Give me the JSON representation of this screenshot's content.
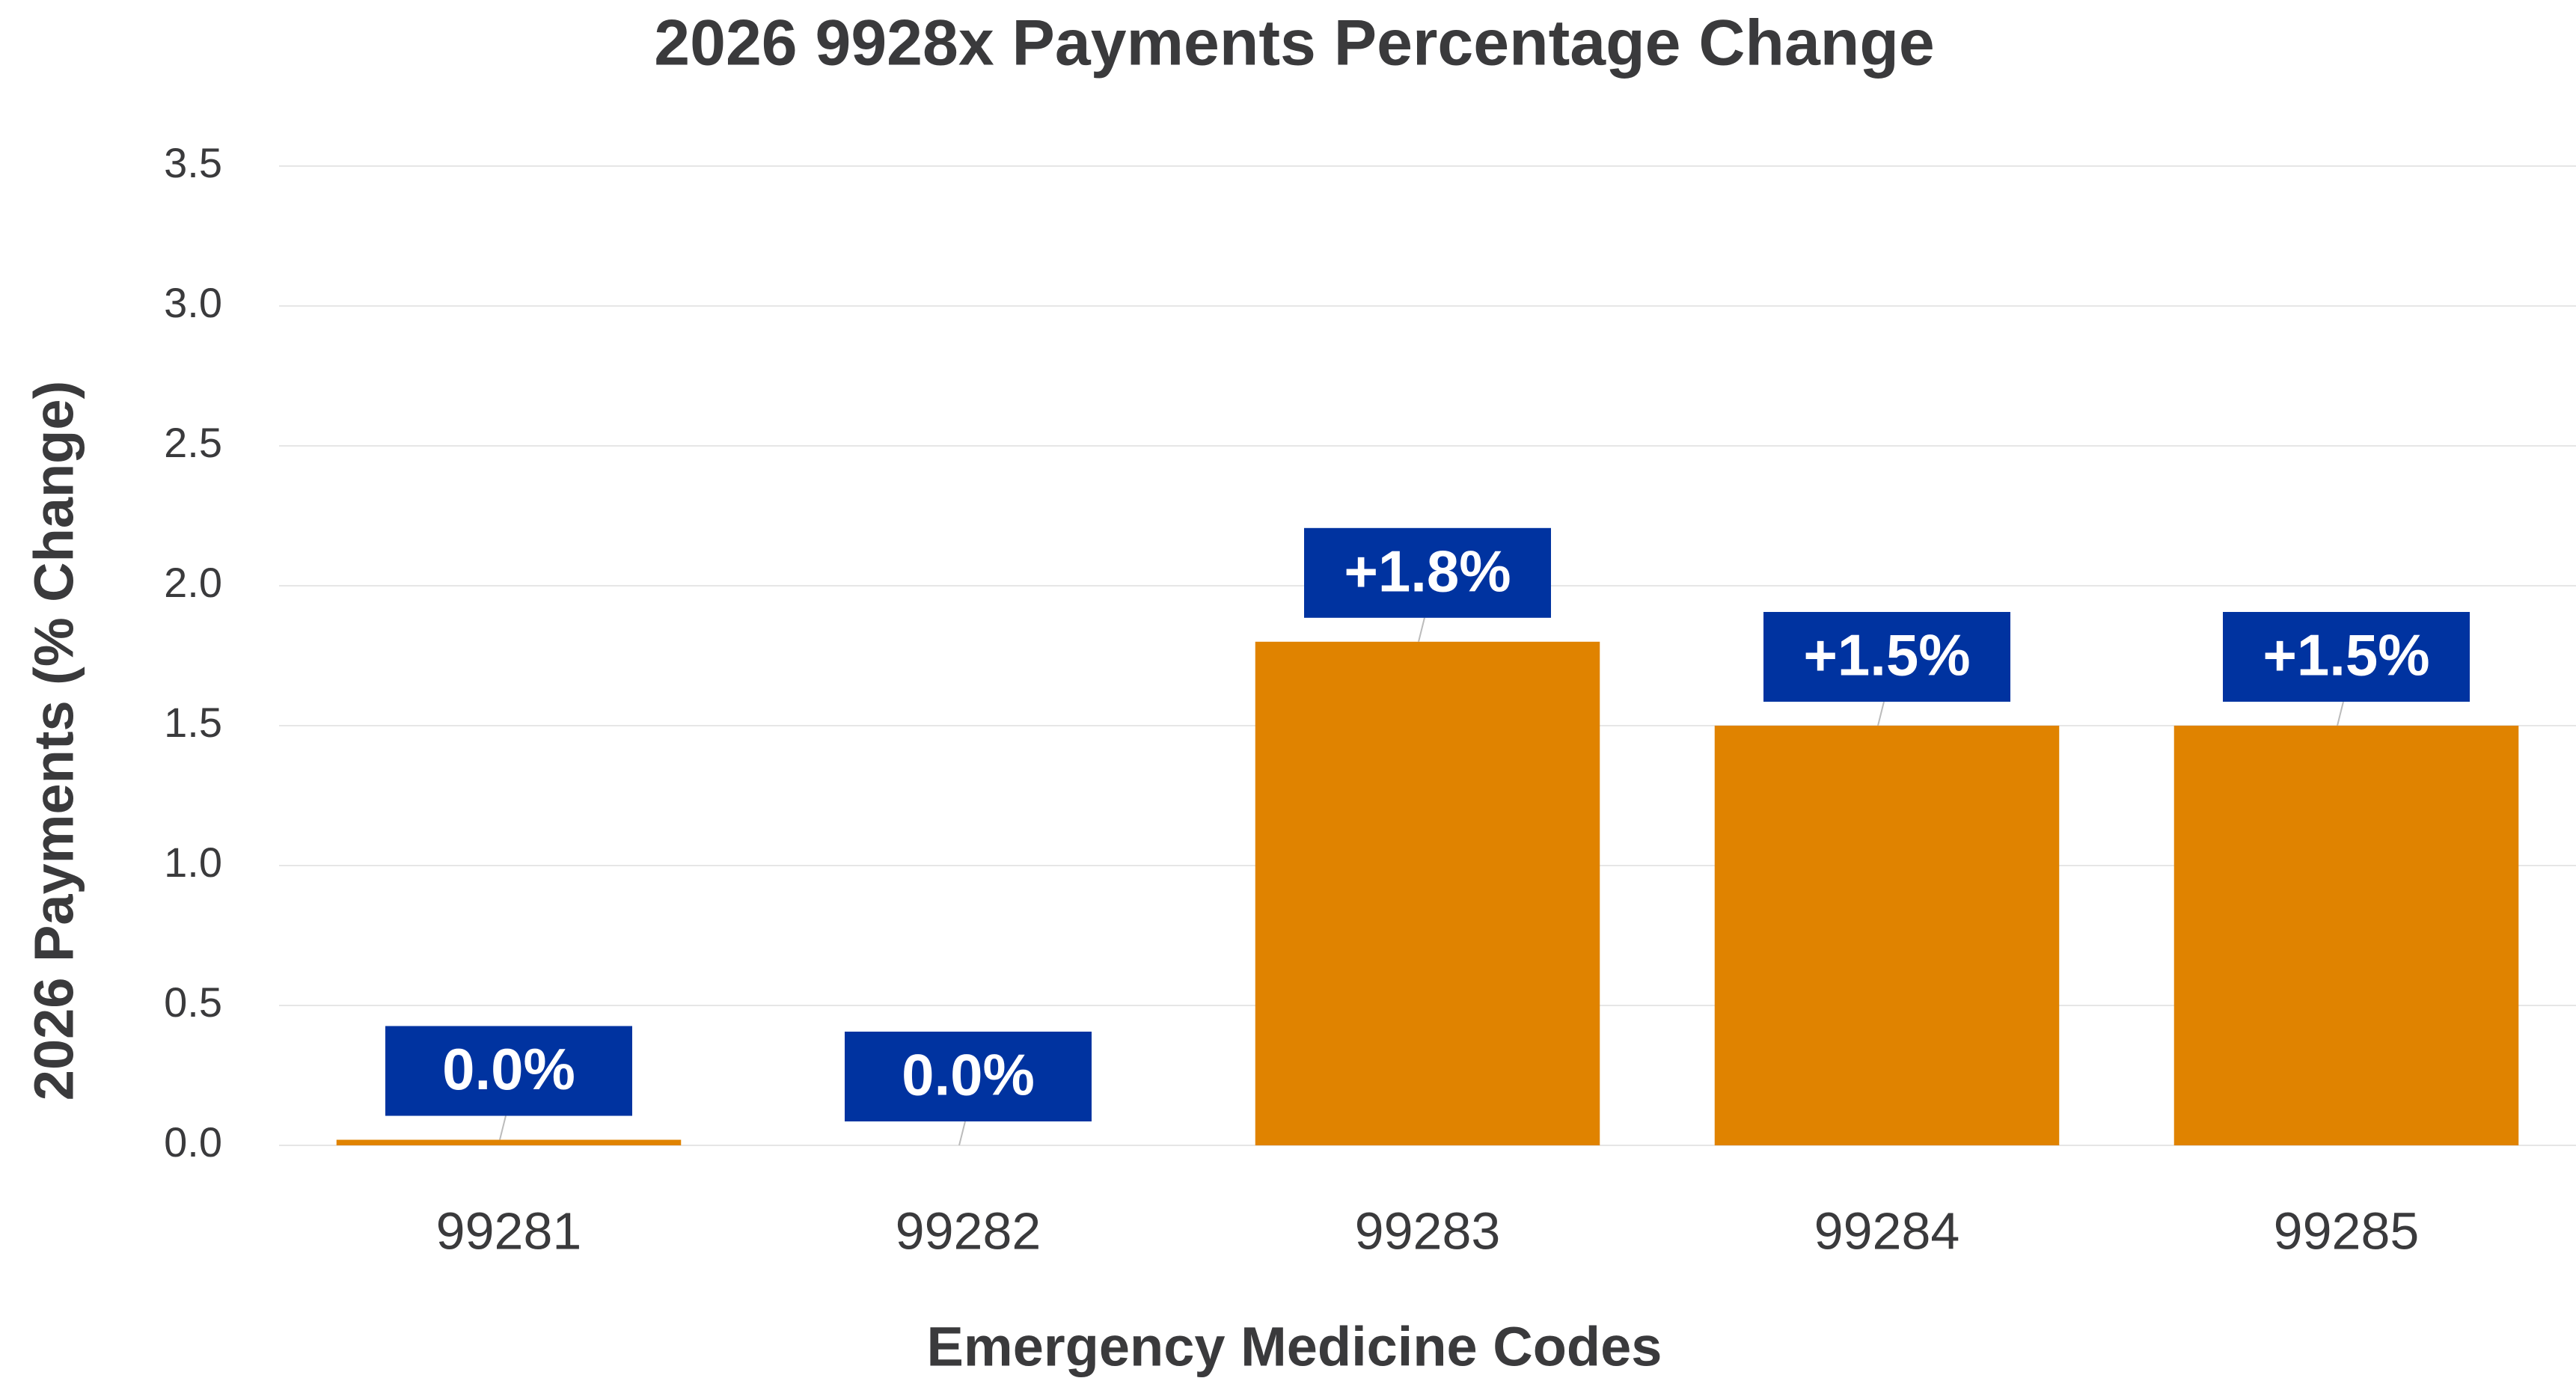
{
  "chart_data": {
    "type": "bar",
    "title": "2026 9928x Payments Percentage Change",
    "x_label": "Emergency Medicine Codes",
    "y_label": "2026 Payments (% Change)",
    "categories": [
      "99281",
      "99282",
      "99283",
      "99284",
      "99285"
    ],
    "values": [
      0.02,
      0,
      1.8,
      1.5,
      1.5
    ],
    "value_labels": [
      "0.0%",
      "0.0%",
      "+1.8%",
      "+1.5%",
      "+1.5%"
    ],
    "color": "#e08300",
    "label_color": "#0033a0",
    "ylim": [
      0,
      3.5
    ],
    "yticks": [
      {
        "value": 0,
        "label": "0.0"
      },
      0.5,
      {
        "value": 1,
        "label": "1.0"
      },
      1.5,
      {
        "value": 2,
        "label": "2.0"
      },
      2.5,
      {
        "value": 3,
        "label": "3.0"
      },
      3.5
    ],
    "grid": true
  }
}
